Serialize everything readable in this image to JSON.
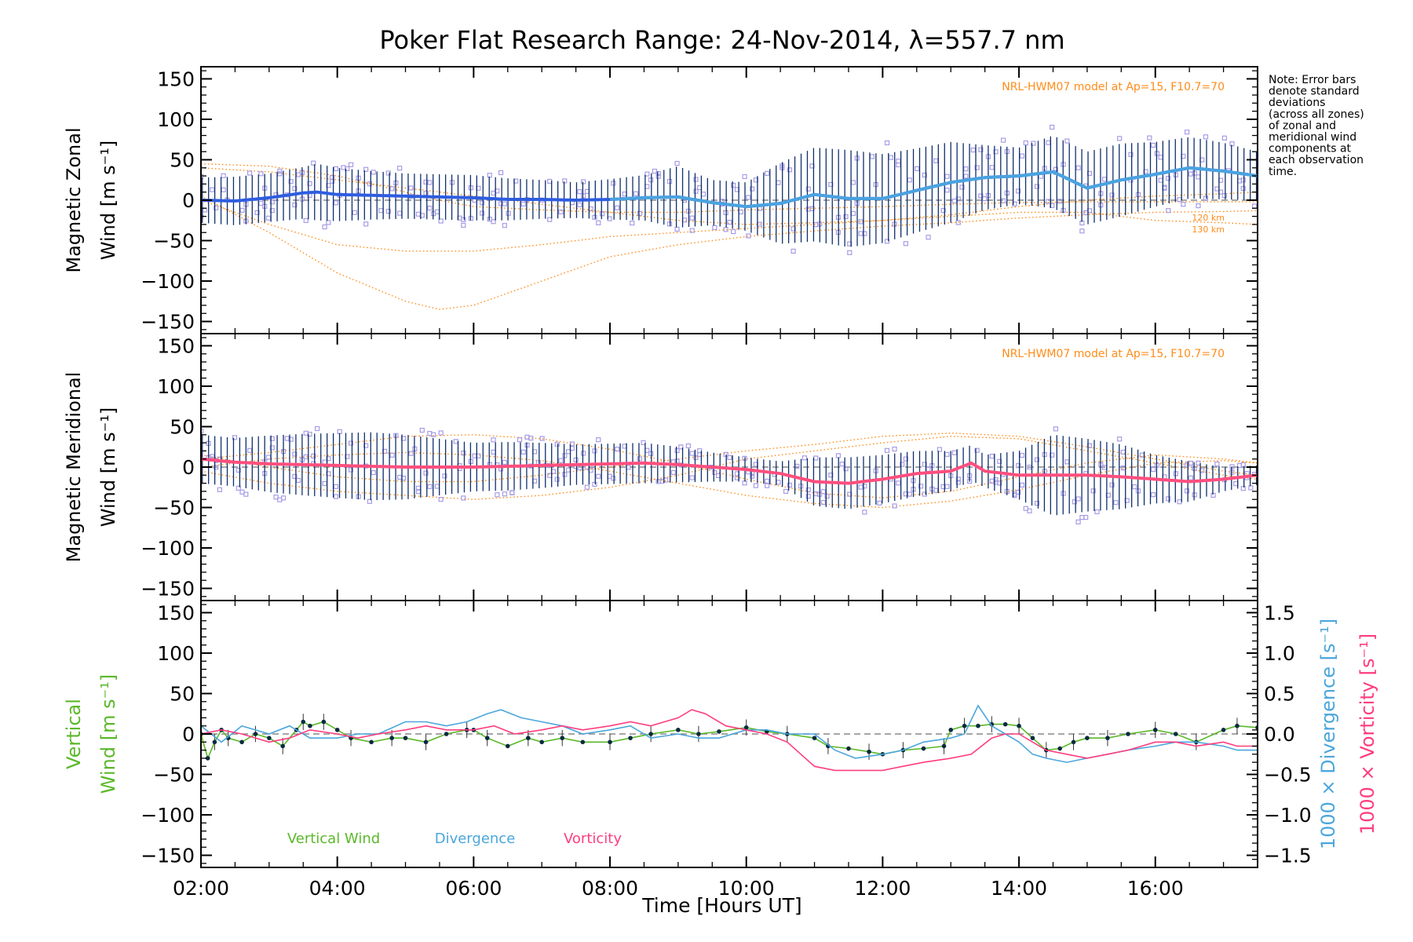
{
  "title": "Poker Flat Research Range: 24-Nov-2014, λ=557.7 nm",
  "note": [
    "Note: Error bars",
    "denote standard",
    "deviations",
    "(across all zones)",
    "of zonal and",
    "meridional wind",
    "components at",
    "each observation",
    "time."
  ],
  "xlabel": "Time [Hours UT]",
  "colors": {
    "zonal_mean": "#2e5de0",
    "zonal_mean_late": "#4aa3e0",
    "meridional_mean": "#ff4f7e",
    "errorbar": "#0f2f6b",
    "scatter": "#a79ce6",
    "model": "#ff8c1a",
    "vertical": "#5bb82a",
    "divergence": "#4ba6dc",
    "vorticity": "#ff3d7f",
    "dashed": "#888888"
  },
  "chart_data": [
    {
      "type": "line",
      "panel": "zonal",
      "ylabel_line1": "Magnetic Zonal",
      "ylabel_line2": "Wind [m s⁻¹]",
      "model_label": "NRL-HWM07 model at Ap=15, F10.7=70",
      "model_levels": [
        "120 km",
        "130 km"
      ],
      "ylim": [
        -165,
        165
      ],
      "yticks": [
        150,
        100,
        50,
        0,
        -50,
        -100,
        -150
      ],
      "xlim": [
        2.0,
        17.5
      ],
      "mean": {
        "x": [
          2.0,
          2.5,
          3.0,
          3.5,
          3.7,
          4.0,
          4.5,
          5.0,
          5.5,
          6.0,
          6.5,
          7.0,
          7.5,
          8.0,
          8.5,
          9.0,
          9.5,
          10.0,
          10.5,
          11.0,
          11.5,
          12.0,
          12.5,
          13.0,
          13.5,
          14.0,
          14.5,
          15.0,
          15.5,
          16.0,
          16.5,
          17.0,
          17.5
        ],
        "y": [
          0,
          -1,
          3,
          9,
          10,
          7,
          6,
          5,
          4,
          3,
          1,
          1,
          0,
          1,
          3,
          4,
          -3,
          -8,
          -4,
          7,
          2,
          2,
          12,
          22,
          28,
          30,
          35,
          15,
          25,
          32,
          40,
          36,
          30
        ]
      },
      "spread": [
        28,
        30,
        30,
        32,
        35,
        33,
        30,
        28,
        28,
        28,
        26,
        24,
        22,
        25,
        28,
        38,
        28,
        30,
        50,
        58,
        60,
        55,
        52,
        50,
        40,
        35,
        45,
        45,
        45,
        40,
        38,
        35,
        30
      ],
      "model": [
        {
          "x": [
            2,
            3,
            4,
            5,
            5.5,
            6,
            7,
            8,
            9,
            10,
            11,
            12,
            13,
            14,
            15,
            16,
            17,
            17.5
          ],
          "y": [
            45,
            42,
            30,
            10,
            0,
            -8,
            -12,
            -15,
            -15,
            -12,
            -10,
            -8,
            -5,
            -3,
            -2,
            -2,
            -2,
            -2
          ]
        },
        {
          "x": [
            2,
            3,
            4,
            5,
            5.5,
            6,
            7,
            8,
            9,
            10,
            11,
            12,
            13,
            14,
            15,
            16,
            17,
            17.5
          ],
          "y": [
            5,
            -40,
            -90,
            -125,
            -135,
            -130,
            -100,
            -70,
            -55,
            -45,
            -38,
            -32,
            -28,
            -22,
            -18,
            -15,
            -14,
            -13
          ]
        },
        {
          "x": [
            2,
            3,
            4,
            5,
            6,
            7,
            8,
            9,
            10,
            11,
            12,
            13,
            14,
            15,
            16,
            17,
            17.5
          ],
          "y": [
            0,
            -30,
            -55,
            -63,
            -63,
            -55,
            -45,
            -40,
            -35,
            -30,
            -25,
            -18,
            -8,
            0,
            5,
            8,
            10
          ]
        },
        {
          "x": [
            2,
            3,
            4,
            5,
            6,
            7,
            8,
            9,
            10,
            11,
            12,
            13,
            14,
            15,
            16,
            17,
            17.5
          ],
          "y": [
            40,
            35,
            25,
            15,
            5,
            -5,
            -15,
            -25,
            -30,
            -28,
            -25,
            -20,
            -15,
            -15,
            -25,
            -28,
            -30
          ]
        }
      ]
    },
    {
      "type": "line",
      "panel": "meridional",
      "ylabel_line1": "Magnetic Meridional",
      "ylabel_line2": "Wind [m s⁻¹]",
      "model_label": "NRL-HWM07 model at Ap=15, F10.7=70",
      "ylim": [
        -165,
        165
      ],
      "yticks": [
        150,
        100,
        50,
        0,
        -50,
        -100,
        -150
      ],
      "xlim": [
        2.0,
        17.5
      ],
      "mean": {
        "x": [
          2.0,
          2.5,
          3.0,
          3.5,
          4.0,
          4.5,
          5.0,
          5.5,
          6.0,
          6.5,
          7.0,
          7.5,
          8.0,
          8.5,
          9.0,
          9.5,
          10.0,
          10.5,
          11.0,
          11.5,
          12.0,
          12.5,
          13.0,
          13.3,
          13.5,
          14.0,
          14.5,
          15.0,
          15.5,
          16.0,
          16.5,
          17.0,
          17.5
        ],
        "y": [
          10,
          6,
          4,
          3,
          2,
          1,
          0,
          0,
          0,
          1,
          2,
          3,
          4,
          5,
          3,
          0,
          -3,
          -8,
          -18,
          -20,
          -15,
          -8,
          -5,
          5,
          -5,
          -10,
          -10,
          -10,
          -12,
          -15,
          -18,
          -15,
          -10
        ]
      },
      "spread": [
        30,
        30,
        35,
        38,
        40,
        42,
        40,
        35,
        30,
        30,
        28,
        25,
        25,
        25,
        22,
        18,
        15,
        15,
        30,
        32,
        30,
        28,
        25,
        22,
        20,
        30,
        50,
        45,
        40,
        30,
        25,
        15,
        12
      ],
      "model": [
        {
          "x": [
            2,
            3,
            4,
            5,
            6,
            7,
            8,
            9,
            10,
            11,
            12,
            13,
            14,
            15,
            16,
            17,
            17.5
          ],
          "y": [
            -5,
            -20,
            -30,
            -35,
            -40,
            -35,
            -25,
            -10,
            10,
            20,
            30,
            38,
            35,
            20,
            5,
            -10,
            -15
          ]
        },
        {
          "x": [
            2,
            3,
            4,
            5,
            6,
            7,
            8,
            9,
            10,
            11,
            12,
            13,
            14,
            15,
            16,
            17,
            17.5
          ],
          "y": [
            15,
            0,
            -12,
            -18,
            -18,
            -10,
            0,
            10,
            20,
            28,
            38,
            42,
            38,
            25,
            10,
            -5,
            -10
          ]
        },
        {
          "x": [
            2,
            3,
            4,
            5,
            6,
            7,
            8,
            9,
            10,
            11,
            12,
            13,
            14,
            15,
            16,
            17,
            17.5
          ],
          "y": [
            10,
            18,
            28,
            38,
            40,
            35,
            22,
            5,
            -15,
            -32,
            -38,
            -30,
            -12,
            5,
            15,
            10,
            5
          ]
        },
        {
          "x": [
            2,
            3,
            4,
            5,
            6,
            7,
            8,
            9,
            10,
            11,
            12,
            13,
            14,
            15,
            16,
            17,
            17.5
          ],
          "y": [
            0,
            10,
            15,
            18,
            15,
            8,
            -5,
            -20,
            -35,
            -45,
            -50,
            -42,
            -28,
            -10,
            5,
            8,
            5
          ]
        }
      ]
    },
    {
      "type": "line",
      "panel": "vertical",
      "ylabel_line1": "Vertical",
      "ylabel_line2": "Wind [m s⁻¹]",
      "y2label_div": "1000 × Divergence [s⁻¹]",
      "y2label_vort": "1000 × Vorticity [s⁻¹]",
      "ylim": [
        -165,
        165
      ],
      "yticks": [
        150,
        100,
        50,
        0,
        -50,
        -100,
        -150
      ],
      "y2lim": [
        -1.65,
        1.65
      ],
      "y2ticks": [
        1.5,
        1.0,
        0.5,
        0.0,
        -0.5,
        -1.0,
        -1.5
      ],
      "y2ticklabels": [
        "1.5",
        "1.0",
        "0.5",
        "0.0",
        "−0.5",
        "−1.0",
        "−1.5"
      ],
      "xlim": [
        2.0,
        17.5
      ],
      "xticks": [
        2,
        4,
        6,
        8,
        10,
        12,
        14,
        16
      ],
      "xticklabels": [
        "02:00",
        "04:00",
        "06:00",
        "08:00",
        "10:00",
        "12:00",
        "14:00",
        "16:00"
      ],
      "legend": [
        "Vertical Wind",
        "Divergence",
        "Vorticity"
      ],
      "series": [
        {
          "name": "Vertical Wind",
          "x": [
            2.0,
            2.1,
            2.2,
            2.3,
            2.4,
            2.6,
            2.8,
            3.0,
            3.2,
            3.4,
            3.5,
            3.6,
            3.8,
            4.0,
            4.2,
            4.5,
            4.8,
            5.0,
            5.3,
            5.6,
            5.9,
            6.0,
            6.2,
            6.5,
            6.8,
            7.0,
            7.3,
            7.6,
            8.0,
            8.3,
            8.6,
            9.0,
            9.3,
            9.6,
            10.0,
            10.3,
            10.6,
            11.0,
            11.2,
            11.5,
            11.8,
            12.0,
            12.3,
            12.6,
            12.9,
            13.0,
            13.2,
            13.4,
            13.6,
            13.8,
            14.0,
            14.2,
            14.4,
            14.6,
            14.8,
            15.0,
            15.3,
            15.6,
            16.0,
            16.3,
            16.6,
            17.0,
            17.2,
            17.5
          ],
          "y": [
            0,
            -30,
            -10,
            5,
            -5,
            -10,
            0,
            -5,
            -15,
            5,
            15,
            10,
            15,
            5,
            -5,
            -10,
            -5,
            -5,
            -10,
            0,
            5,
            5,
            -5,
            -15,
            -5,
            -10,
            -5,
            -10,
            -10,
            -5,
            0,
            5,
            0,
            3,
            8,
            3,
            0,
            -5,
            -15,
            -18,
            -22,
            -25,
            -20,
            -18,
            -15,
            5,
            10,
            10,
            12,
            12,
            10,
            -5,
            -20,
            -18,
            -10,
            -5,
            -5,
            0,
            5,
            0,
            -10,
            5,
            10,
            8
          ]
        },
        {
          "name": "Divergence",
          "x": [
            2.0,
            2.3,
            2.6,
            3.0,
            3.3,
            3.6,
            4.0,
            4.3,
            4.6,
            5.0,
            5.3,
            5.6,
            5.9,
            6.2,
            6.4,
            6.7,
            7.0,
            7.3,
            7.6,
            8.0,
            8.3,
            8.6,
            9.0,
            9.3,
            9.6,
            10.0,
            10.3,
            10.6,
            11.0,
            11.3,
            11.6,
            12.0,
            12.3,
            12.6,
            13.0,
            13.2,
            13.4,
            13.6,
            13.8,
            14.0,
            14.2,
            14.4,
            14.7,
            15.0,
            15.3,
            15.6,
            16.0,
            16.3,
            16.6,
            17.0,
            17.2,
            17.5
          ],
          "y": [
            0.1,
            -0.1,
            0.1,
            0.0,
            0.1,
            -0.05,
            -0.05,
            0.0,
            0.0,
            0.15,
            0.15,
            0.1,
            0.15,
            0.25,
            0.3,
            0.2,
            0.15,
            0.1,
            0.0,
            0.05,
            0.1,
            -0.05,
            0.0,
            -0.05,
            -0.05,
            0.05,
            0.05,
            0.0,
            0.0,
            -0.2,
            -0.3,
            -0.25,
            -0.2,
            -0.1,
            -0.05,
            0.0,
            0.35,
            0.1,
            0.0,
            -0.1,
            -0.25,
            -0.3,
            -0.35,
            -0.3,
            -0.25,
            -0.2,
            -0.15,
            -0.1,
            -0.1,
            -0.15,
            -0.2,
            -0.2
          ]
        },
        {
          "name": "Vorticity",
          "x": [
            2.0,
            2.3,
            2.6,
            3.0,
            3.3,
            3.6,
            4.0,
            4.3,
            4.6,
            5.0,
            5.3,
            5.6,
            6.0,
            6.3,
            6.6,
            7.0,
            7.3,
            7.6,
            8.0,
            8.3,
            8.6,
            9.0,
            9.2,
            9.4,
            9.7,
            10.0,
            10.3,
            10.6,
            10.8,
            11.0,
            11.3,
            11.6,
            12.0,
            12.3,
            12.6,
            13.0,
            13.3,
            13.6,
            13.8,
            14.0,
            14.2,
            14.4,
            14.7,
            15.0,
            15.3,
            15.6,
            16.0,
            16.3,
            16.6,
            17.0,
            17.2,
            17.5
          ],
          "y": [
            0.0,
            0.05,
            0.0,
            -0.1,
            -0.05,
            0.05,
            0.0,
            -0.05,
            0.0,
            0.05,
            0.1,
            0.05,
            0.05,
            0.1,
            0.0,
            0.05,
            0.1,
            0.05,
            0.1,
            0.15,
            0.1,
            0.2,
            0.3,
            0.25,
            0.1,
            0.05,
            0.0,
            -0.1,
            -0.25,
            -0.4,
            -0.45,
            -0.45,
            -0.45,
            -0.4,
            -0.35,
            -0.3,
            -0.25,
            -0.05,
            0.0,
            0.0,
            -0.1,
            -0.2,
            -0.25,
            -0.3,
            -0.25,
            -0.2,
            -0.1,
            -0.1,
            -0.15,
            -0.1,
            -0.15,
            -0.15
          ]
        }
      ]
    }
  ]
}
